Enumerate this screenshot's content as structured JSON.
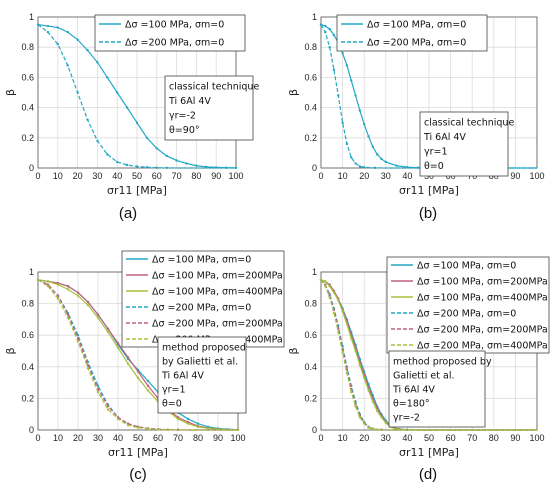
{
  "chart_data": [
    {
      "panel": "(a)",
      "type": "line",
      "xlabel": "σr11 [MPa]",
      "ylabel": "β",
      "xlim": [
        0,
        100
      ],
      "ylim": [
        0,
        1
      ],
      "xticks": [
        "0",
        "10",
        "20",
        "30",
        "40",
        "50",
        "60",
        "70",
        "80",
        "90",
        "100"
      ],
      "yticks": [
        "0",
        "0.2",
        "0.4",
        "0.6",
        "0.8",
        "1"
      ],
      "grid": true,
      "legend_placement": "top-center",
      "annotation": [
        "classical technique",
        "Ti 6Al 4V",
        "γr=-2",
        "θ=90°"
      ],
      "series": [
        {
          "name": "Δσ =100 MPa, σm=0",
          "color": "#22a8c4",
          "dash": "solid",
          "x": [
            0,
            5,
            10,
            15,
            20,
            25,
            30,
            35,
            40,
            45,
            50,
            55,
            60,
            65,
            70,
            75,
            80,
            85,
            90,
            95,
            100
          ],
          "y": [
            0.95,
            0.94,
            0.93,
            0.9,
            0.85,
            0.78,
            0.7,
            0.6,
            0.5,
            0.4,
            0.3,
            0.2,
            0.13,
            0.08,
            0.05,
            0.03,
            0.015,
            0.008,
            0.004,
            0.002,
            0.001
          ]
        },
        {
          "name": "Δσ =200 MPa, σm=0",
          "color": "#22a8c4",
          "dash": "dashed",
          "x": [
            0,
            5,
            10,
            15,
            20,
            25,
            30,
            35,
            40,
            45,
            50,
            55,
            60,
            65,
            70,
            75,
            80,
            85,
            90,
            95,
            100
          ],
          "y": [
            0.95,
            0.9,
            0.82,
            0.68,
            0.5,
            0.32,
            0.18,
            0.09,
            0.04,
            0.02,
            0.01,
            0.005,
            0.002,
            0.001,
            0,
            0,
            0,
            0,
            0,
            0,
            0
          ]
        }
      ]
    },
    {
      "panel": "(b)",
      "type": "line",
      "xlabel": "σr11 [MPa]",
      "ylabel": "β",
      "xlim": [
        0,
        100
      ],
      "ylim": [
        0,
        1
      ],
      "xticks": [
        "0",
        "10",
        "20",
        "30",
        "40",
        "50",
        "60",
        "70",
        "80",
        "90",
        "100"
      ],
      "yticks": [
        "0",
        "0.2",
        "0.4",
        "0.6",
        "0.8",
        "1"
      ],
      "grid": true,
      "legend_placement": "top-right",
      "annotation": [
        "classical technique",
        "Ti 6Al 4V",
        "γr=1",
        "θ=0"
      ],
      "series": [
        {
          "name": "Δσ =100 MPa, σm=0",
          "color": "#22a8c4",
          "dash": "solid",
          "x": [
            0,
            2,
            4,
            6,
            8,
            10,
            12,
            14,
            16,
            18,
            20,
            22,
            24,
            26,
            28,
            30,
            35,
            40,
            45,
            50,
            60,
            70,
            80,
            90,
            100
          ],
          "y": [
            0.95,
            0.94,
            0.92,
            0.88,
            0.83,
            0.76,
            0.68,
            0.58,
            0.48,
            0.38,
            0.29,
            0.21,
            0.14,
            0.09,
            0.06,
            0.04,
            0.015,
            0.005,
            0.002,
            0.001,
            0,
            0,
            0,
            0,
            0
          ]
        },
        {
          "name": "Δσ =200 MPa, σm=0",
          "color": "#22a8c4",
          "dash": "dashed",
          "x": [
            0,
            2,
            4,
            6,
            8,
            10,
            12,
            14,
            16,
            18,
            20,
            25,
            30,
            40,
            50,
            60,
            70,
            80,
            90,
            100
          ],
          "y": [
            0.95,
            0.9,
            0.8,
            0.65,
            0.48,
            0.3,
            0.16,
            0.07,
            0.03,
            0.01,
            0.005,
            0.001,
            0,
            0,
            0,
            0,
            0,
            0,
            0,
            0
          ]
        }
      ]
    },
    {
      "panel": "(c)",
      "type": "line",
      "xlabel": "σr11 [MPa]",
      "ylabel": "β",
      "xlim": [
        0,
        100
      ],
      "ylim": [
        0,
        1
      ],
      "xticks": [
        "0",
        "10",
        "20",
        "30",
        "40",
        "50",
        "60",
        "70",
        "80",
        "90",
        "100"
      ],
      "yticks": [
        "0",
        "0.2",
        "0.4",
        "0.6",
        "0.8",
        "1"
      ],
      "grid": true,
      "legend_placement": "top-right",
      "annotation": [
        "method proposed",
        "by Galietti et al.",
        "Ti 6Al 4V",
        "γr=1",
        "θ=0"
      ],
      "series": [
        {
          "name": "Δσ =100 MPa, σm=0",
          "color": "#22a8c4",
          "dash": "solid",
          "x": [
            0,
            5,
            10,
            15,
            20,
            25,
            30,
            35,
            40,
            45,
            50,
            55,
            60,
            65,
            70,
            75,
            80,
            85,
            90,
            95,
            100
          ],
          "y": [
            0.95,
            0.94,
            0.93,
            0.91,
            0.87,
            0.81,
            0.73,
            0.64,
            0.54,
            0.45,
            0.38,
            0.31,
            0.24,
            0.17,
            0.11,
            0.07,
            0.04,
            0.02,
            0.01,
            0.005,
            0.002
          ]
        },
        {
          "name": "Δσ =100 MPa, σm=200MPa",
          "color": "#c0607a",
          "dash": "solid",
          "x": [
            0,
            5,
            10,
            15,
            20,
            25,
            30,
            35,
            40,
            45,
            50,
            55,
            60,
            65,
            70,
            75,
            80,
            85,
            90,
            95,
            100
          ],
          "y": [
            0.95,
            0.94,
            0.93,
            0.91,
            0.87,
            0.81,
            0.73,
            0.64,
            0.55,
            0.46,
            0.37,
            0.28,
            0.2,
            0.13,
            0.08,
            0.05,
            0.025,
            0.012,
            0.005,
            0.002,
            0.001
          ]
        },
        {
          "name": "Δσ =100 MPa, σm=400MPa",
          "color": "#a6c03a",
          "dash": "solid",
          "x": [
            0,
            5,
            10,
            15,
            20,
            25,
            30,
            35,
            40,
            45,
            50,
            55,
            60,
            65,
            70,
            75,
            80,
            85,
            90,
            95,
            100
          ],
          "y": [
            0.95,
            0.94,
            0.92,
            0.89,
            0.85,
            0.79,
            0.71,
            0.62,
            0.52,
            0.42,
            0.33,
            0.25,
            0.18,
            0.12,
            0.07,
            0.04,
            0.02,
            0.01,
            0.005,
            0.002,
            0.001
          ]
        },
        {
          "name": "Δσ =200 MPa, σm=0",
          "color": "#22a8c4",
          "dash": "dashed",
          "x": [
            0,
            5,
            10,
            15,
            20,
            25,
            30,
            35,
            40,
            45,
            50,
            55,
            60,
            65,
            70,
            75,
            80,
            85,
            90,
            95,
            100
          ],
          "y": [
            0.95,
            0.92,
            0.85,
            0.74,
            0.6,
            0.43,
            0.28,
            0.16,
            0.08,
            0.04,
            0.02,
            0.01,
            0.005,
            0.002,
            0.001,
            0,
            0,
            0,
            0,
            0,
            0
          ]
        },
        {
          "name": "Δσ =200 MPa, σm=200MPa",
          "color": "#c0607a",
          "dash": "dashed",
          "x": [
            0,
            5,
            10,
            15,
            20,
            25,
            30,
            35,
            40,
            45,
            50,
            55,
            60,
            65,
            70,
            75,
            80,
            85,
            90,
            95,
            100
          ],
          "y": [
            0.95,
            0.92,
            0.85,
            0.73,
            0.58,
            0.41,
            0.26,
            0.15,
            0.08,
            0.04,
            0.02,
            0.01,
            0.005,
            0.002,
            0.001,
            0,
            0,
            0,
            0,
            0,
            0
          ]
        },
        {
          "name": "Δσ =200 MPa, σm=400MPa",
          "color": "#a6c03a",
          "dash": "dashed",
          "x": [
            0,
            5,
            10,
            15,
            20,
            25,
            30,
            35,
            40,
            45,
            50,
            55,
            60,
            65,
            70,
            75,
            80,
            85,
            90,
            95,
            100
          ],
          "y": [
            0.95,
            0.91,
            0.83,
            0.71,
            0.56,
            0.39,
            0.24,
            0.13,
            0.07,
            0.03,
            0.015,
            0.007,
            0.003,
            0.001,
            0,
            0,
            0,
            0,
            0,
            0,
            0
          ]
        }
      ]
    },
    {
      "panel": "(d)",
      "type": "line",
      "xlabel": "σr11 [MPa]",
      "ylabel": "β",
      "xlim": [
        0,
        100
      ],
      "ylim": [
        0,
        1
      ],
      "xticks": [
        "0",
        "10",
        "20",
        "30",
        "40",
        "50",
        "60",
        "70",
        "80",
        "90",
        "100"
      ],
      "yticks": [
        "0",
        "0.2",
        "0.4",
        "0.6",
        "0.8",
        "1"
      ],
      "grid": true,
      "legend_placement": "top-right",
      "annotation": [
        "method proposed by",
        "Galietti et al.",
        "Ti 6Al 4V",
        "θ=180°",
        "γr=-2"
      ],
      "series": [
        {
          "name": "Δσ =100 MPa, σm=0",
          "color": "#22a8c4",
          "dash": "solid",
          "x": [
            0,
            2,
            4,
            6,
            8,
            10,
            12,
            14,
            16,
            18,
            20,
            22,
            24,
            26,
            28,
            30,
            32,
            34,
            36,
            40,
            45,
            50,
            60,
            80,
            100
          ],
          "y": [
            0.95,
            0.94,
            0.92,
            0.88,
            0.83,
            0.77,
            0.7,
            0.62,
            0.54,
            0.45,
            0.37,
            0.29,
            0.22,
            0.15,
            0.1,
            0.06,
            0.03,
            0.015,
            0.007,
            0.002,
            0,
            0,
            0,
            0,
            0
          ]
        },
        {
          "name": "Δσ =100 MPa, σm=200MPa",
          "color": "#c0607a",
          "dash": "solid",
          "x": [
            0,
            2,
            4,
            6,
            8,
            10,
            12,
            14,
            16,
            18,
            20,
            22,
            24,
            26,
            28,
            30,
            32,
            34,
            36,
            40,
            45,
            50,
            60,
            80,
            100
          ],
          "y": [
            0.95,
            0.94,
            0.92,
            0.88,
            0.83,
            0.76,
            0.69,
            0.6,
            0.52,
            0.43,
            0.35,
            0.27,
            0.2,
            0.14,
            0.09,
            0.05,
            0.025,
            0.012,
            0.005,
            0.001,
            0,
            0,
            0,
            0,
            0
          ]
        },
        {
          "name": "Δσ =100 MPa, σm=400MPa",
          "color": "#a6c03a",
          "dash": "solid",
          "x": [
            0,
            2,
            4,
            6,
            8,
            10,
            12,
            14,
            16,
            18,
            20,
            22,
            24,
            26,
            28,
            30,
            32,
            34,
            36,
            40,
            45,
            50,
            60,
            80,
            100
          ],
          "y": [
            0.95,
            0.94,
            0.91,
            0.87,
            0.82,
            0.75,
            0.67,
            0.58,
            0.5,
            0.41,
            0.33,
            0.25,
            0.18,
            0.12,
            0.08,
            0.045,
            0.02,
            0.01,
            0.004,
            0.001,
            0,
            0,
            0,
            0,
            0
          ]
        },
        {
          "name": "Δσ =200 MPa, σm=0",
          "color": "#22a8c4",
          "dash": "dashed",
          "x": [
            0,
            2,
            4,
            6,
            8,
            10,
            12,
            14,
            16,
            18,
            20,
            22,
            24,
            26,
            28,
            30,
            35,
            40,
            50,
            60,
            80,
            100
          ],
          "y": [
            0.95,
            0.92,
            0.86,
            0.77,
            0.66,
            0.53,
            0.4,
            0.28,
            0.18,
            0.1,
            0.05,
            0.02,
            0.008,
            0.003,
            0.001,
            0,
            0,
            0,
            0,
            0,
            0,
            0
          ]
        },
        {
          "name": "Δσ =200 MPa, σm=200MPa",
          "color": "#c0607a",
          "dash": "dashed",
          "x": [
            0,
            2,
            4,
            6,
            8,
            10,
            12,
            14,
            16,
            18,
            20,
            22,
            24,
            26,
            28,
            30,
            35,
            40,
            50,
            60,
            80,
            100
          ],
          "y": [
            0.95,
            0.92,
            0.85,
            0.76,
            0.64,
            0.51,
            0.38,
            0.26,
            0.16,
            0.09,
            0.045,
            0.018,
            0.007,
            0.002,
            0.001,
            0,
            0,
            0,
            0,
            0,
            0,
            0
          ]
        },
        {
          "name": "Δσ =200 MPa, σm=400MPa",
          "color": "#a6c03a",
          "dash": "dashed",
          "x": [
            0,
            2,
            4,
            6,
            8,
            10,
            12,
            14,
            16,
            18,
            20,
            22,
            24,
            26,
            28,
            30,
            35,
            40,
            50,
            60,
            80,
            100
          ],
          "y": [
            0.95,
            0.91,
            0.84,
            0.74,
            0.62,
            0.49,
            0.36,
            0.24,
            0.15,
            0.08,
            0.04,
            0.015,
            0.006,
            0.002,
            0,
            0,
            0,
            0,
            0,
            0,
            0,
            0
          ]
        }
      ]
    }
  ]
}
